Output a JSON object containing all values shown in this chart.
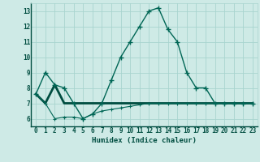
{
  "xlabel": "Humidex (Indice chaleur)",
  "background_color": "#ceeae6",
  "grid_color": "#a8d4cf",
  "line_color": "#006655",
  "line_color_thick": "#004d40",
  "xlim": [
    -0.5,
    23.5
  ],
  "ylim": [
    5.5,
    13.5
  ],
  "yticks": [
    6,
    7,
    8,
    9,
    10,
    11,
    12,
    13
  ],
  "xticks": [
    0,
    1,
    2,
    3,
    4,
    5,
    6,
    7,
    8,
    9,
    10,
    11,
    12,
    13,
    14,
    15,
    16,
    17,
    18,
    19,
    20,
    21,
    22,
    23
  ],
  "line_main_x": [
    0,
    1,
    2,
    3,
    4,
    5,
    6,
    7,
    8,
    9,
    10,
    11,
    12,
    13,
    14,
    15,
    16,
    17,
    18,
    19,
    20,
    21,
    22,
    23
  ],
  "line_main_y": [
    7.6,
    9.0,
    8.2,
    8.0,
    7.0,
    6.0,
    6.3,
    7.0,
    8.5,
    10.0,
    11.0,
    12.0,
    13.0,
    13.2,
    11.8,
    11.0,
    9.0,
    8.0,
    8.0,
    7.0,
    7.0,
    7.0,
    7.0,
    7.0
  ],
  "line_flat_x": [
    0,
    1,
    2,
    3,
    4,
    5,
    6,
    7,
    8,
    9,
    10,
    11,
    12,
    13,
    14,
    15,
    16,
    17,
    18,
    19,
    20,
    21,
    22,
    23
  ],
  "line_flat_y": [
    7.6,
    7.0,
    8.2,
    7.0,
    7.0,
    7.0,
    7.0,
    7.0,
    7.0,
    7.0,
    7.0,
    7.0,
    7.0,
    7.0,
    7.0,
    7.0,
    7.0,
    7.0,
    7.0,
    7.0,
    7.0,
    7.0,
    7.0,
    7.0
  ],
  "line_low_x": [
    0,
    1,
    2,
    3,
    4,
    5,
    6,
    7,
    8,
    9,
    10,
    11,
    12,
    13,
    14,
    15,
    16,
    17,
    18,
    19,
    20,
    21,
    22,
    23
  ],
  "line_low_y": [
    7.6,
    7.0,
    6.0,
    6.1,
    6.1,
    6.0,
    6.3,
    6.5,
    6.6,
    6.7,
    6.8,
    6.9,
    7.0,
    7.0,
    7.0,
    7.0,
    7.0,
    7.0,
    7.0,
    7.0,
    7.0,
    7.0,
    7.0,
    7.0
  ]
}
